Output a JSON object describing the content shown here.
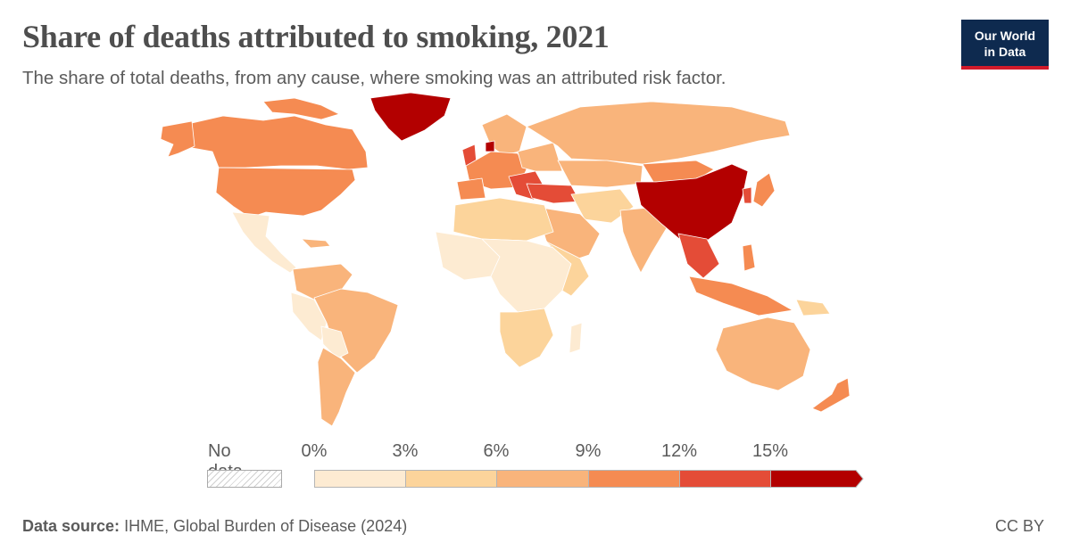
{
  "header": {
    "title": "Share of deaths attributed to smoking, 2021",
    "subtitle": "The share of total deaths, from any cause, where smoking was an attributed risk factor."
  },
  "logo": {
    "line1": "Our World",
    "line2": "in Data"
  },
  "legend": {
    "no_data_label": "No data",
    "ticks": [
      "0%",
      "3%",
      "6%",
      "9%",
      "12%",
      "15%"
    ],
    "bin_colors": [
      "#fdebd2",
      "#fcd49b",
      "#f9b47b",
      "#f58b52",
      "#e44c37",
      "#b30000"
    ]
  },
  "footer": {
    "source_label": "Data source:",
    "source_text": "IHME, Global Burden of Disease (2024)",
    "license": "CC BY"
  }
}
